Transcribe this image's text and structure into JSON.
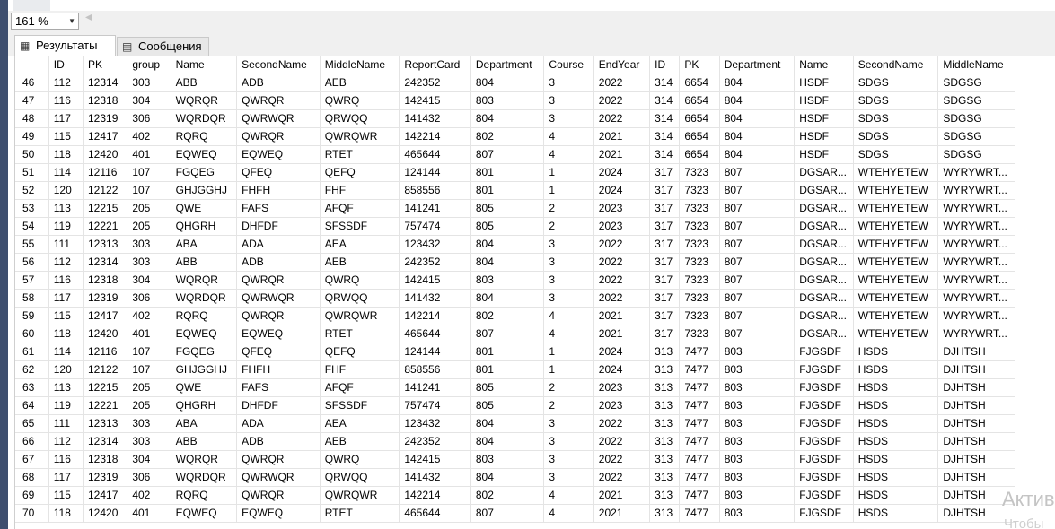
{
  "zoom": {
    "value": "161 %"
  },
  "tabs": [
    {
      "label": "Результаты",
      "icon": "grid-icon"
    },
    {
      "label": "Сообщения",
      "icon": "messages-icon"
    }
  ],
  "grid": {
    "columns": [
      "",
      "ID",
      "PK",
      "group",
      "Name",
      "SecondName",
      "MiddleName",
      "ReportCard",
      "Department",
      "Course",
      "EndYear",
      "ID",
      "PK",
      "Department",
      "Name",
      "SecondName",
      "MiddleName"
    ],
    "rows": [
      [
        "46",
        "112",
        "12314",
        "303",
        "ABB",
        "ADB",
        "AEB",
        "242352",
        "804",
        "3",
        "2022",
        "314",
        "6654",
        "804",
        "HSDF",
        "SDGS",
        "SDGSG"
      ],
      [
        "47",
        "116",
        "12318",
        "304",
        "WQRQR",
        "QWRQR",
        "QWRQ",
        "142415",
        "803",
        "3",
        "2022",
        "314",
        "6654",
        "804",
        "HSDF",
        "SDGS",
        "SDGSG"
      ],
      [
        "48",
        "117",
        "12319",
        "306",
        "WQRDQR",
        "QWRWQR",
        "QRWQQ",
        "141432",
        "804",
        "3",
        "2022",
        "314",
        "6654",
        "804",
        "HSDF",
        "SDGS",
        "SDGSG"
      ],
      [
        "49",
        "115",
        "12417",
        "402",
        "RQRQ",
        "QWRQR",
        "QWRQWR",
        "142214",
        "802",
        "4",
        "2021",
        "314",
        "6654",
        "804",
        "HSDF",
        "SDGS",
        "SDGSG"
      ],
      [
        "50",
        "118",
        "12420",
        "401",
        "EQWEQ",
        "EQWEQ",
        "RTET",
        "465644",
        "807",
        "4",
        "2021",
        "314",
        "6654",
        "804",
        "HSDF",
        "SDGS",
        "SDGSG"
      ],
      [
        "51",
        "114",
        "12116",
        "107",
        "FGQEG",
        "QFEQ",
        "QEFQ",
        "124144",
        "801",
        "1",
        "2024",
        "317",
        "7323",
        "807",
        "DGSAR...",
        "WTEHYETEW",
        "WYRYWRT..."
      ],
      [
        "52",
        "120",
        "12122",
        "107",
        "GHJGGHJ",
        "FHFH",
        "FHF",
        "858556",
        "801",
        "1",
        "2024",
        "317",
        "7323",
        "807",
        "DGSAR...",
        "WTEHYETEW",
        "WYRYWRT..."
      ],
      [
        "53",
        "113",
        "12215",
        "205",
        "QWE",
        "FAFS",
        "AFQF",
        "141241",
        "805",
        "2",
        "2023",
        "317",
        "7323",
        "807",
        "DGSAR...",
        "WTEHYETEW",
        "WYRYWRT..."
      ],
      [
        "54",
        "119",
        "12221",
        "205",
        "QHGRH",
        "DHFDF",
        "SFSSDF",
        "757474",
        "805",
        "2",
        "2023",
        "317",
        "7323",
        "807",
        "DGSAR...",
        "WTEHYETEW",
        "WYRYWRT..."
      ],
      [
        "55",
        "111",
        "12313",
        "303",
        "ABA",
        "ADA",
        "AEA",
        "123432",
        "804",
        "3",
        "2022",
        "317",
        "7323",
        "807",
        "DGSAR...",
        "WTEHYETEW",
        "WYRYWRT..."
      ],
      [
        "56",
        "112",
        "12314",
        "303",
        "ABB",
        "ADB",
        "AEB",
        "242352",
        "804",
        "3",
        "2022",
        "317",
        "7323",
        "807",
        "DGSAR...",
        "WTEHYETEW",
        "WYRYWRT..."
      ],
      [
        "57",
        "116",
        "12318",
        "304",
        "WQRQR",
        "QWRQR",
        "QWRQ",
        "142415",
        "803",
        "3",
        "2022",
        "317",
        "7323",
        "807",
        "DGSAR...",
        "WTEHYETEW",
        "WYRYWRT..."
      ],
      [
        "58",
        "117",
        "12319",
        "306",
        "WQRDQR",
        "QWRWQR",
        "QRWQQ",
        "141432",
        "804",
        "3",
        "2022",
        "317",
        "7323",
        "807",
        "DGSAR...",
        "WTEHYETEW",
        "WYRYWRT..."
      ],
      [
        "59",
        "115",
        "12417",
        "402",
        "RQRQ",
        "QWRQR",
        "QWRQWR",
        "142214",
        "802",
        "4",
        "2021",
        "317",
        "7323",
        "807",
        "DGSAR...",
        "WTEHYETEW",
        "WYRYWRT..."
      ],
      [
        "60",
        "118",
        "12420",
        "401",
        "EQWEQ",
        "EQWEQ",
        "RTET",
        "465644",
        "807",
        "4",
        "2021",
        "317",
        "7323",
        "807",
        "DGSAR...",
        "WTEHYETEW",
        "WYRYWRT..."
      ],
      [
        "61",
        "114",
        "12116",
        "107",
        "FGQEG",
        "QFEQ",
        "QEFQ",
        "124144",
        "801",
        "1",
        "2024",
        "313",
        "7477",
        "803",
        "FJGSDF",
        "HSDS",
        "DJHTSH"
      ],
      [
        "62",
        "120",
        "12122",
        "107",
        "GHJGGHJ",
        "FHFH",
        "FHF",
        "858556",
        "801",
        "1",
        "2024",
        "313",
        "7477",
        "803",
        "FJGSDF",
        "HSDS",
        "DJHTSH"
      ],
      [
        "63",
        "113",
        "12215",
        "205",
        "QWE",
        "FAFS",
        "AFQF",
        "141241",
        "805",
        "2",
        "2023",
        "313",
        "7477",
        "803",
        "FJGSDF",
        "HSDS",
        "DJHTSH"
      ],
      [
        "64",
        "119",
        "12221",
        "205",
        "QHGRH",
        "DHFDF",
        "SFSSDF",
        "757474",
        "805",
        "2",
        "2023",
        "313",
        "7477",
        "803",
        "FJGSDF",
        "HSDS",
        "DJHTSH"
      ],
      [
        "65",
        "111",
        "12313",
        "303",
        "ABA",
        "ADA",
        "AEA",
        "123432",
        "804",
        "3",
        "2022",
        "313",
        "7477",
        "803",
        "FJGSDF",
        "HSDS",
        "DJHTSH"
      ],
      [
        "66",
        "112",
        "12314",
        "303",
        "ABB",
        "ADB",
        "AEB",
        "242352",
        "804",
        "3",
        "2022",
        "313",
        "7477",
        "803",
        "FJGSDF",
        "HSDS",
        "DJHTSH"
      ],
      [
        "67",
        "116",
        "12318",
        "304",
        "WQRQR",
        "QWRQR",
        "QWRQ",
        "142415",
        "803",
        "3",
        "2022",
        "313",
        "7477",
        "803",
        "FJGSDF",
        "HSDS",
        "DJHTSH"
      ],
      [
        "68",
        "117",
        "12319",
        "306",
        "WQRDQR",
        "QWRWQR",
        "QRWQQ",
        "141432",
        "804",
        "3",
        "2022",
        "313",
        "7477",
        "803",
        "FJGSDF",
        "HSDS",
        "DJHTSH"
      ],
      [
        "69",
        "115",
        "12417",
        "402",
        "RQRQ",
        "QWRQR",
        "QWRQWR",
        "142214",
        "802",
        "4",
        "2021",
        "313",
        "7477",
        "803",
        "FJGSDF",
        "HSDS",
        "DJHTSH"
      ],
      [
        "70",
        "118",
        "12420",
        "401",
        "EQWEQ",
        "EQWEQ",
        "RTET",
        "465644",
        "807",
        "4",
        "2021",
        "313",
        "7477",
        "803",
        "FJGSDF",
        "HSDS",
        "DJHTSH"
      ]
    ]
  },
  "watermark": {
    "line1": "Актив",
    "line2": "Чтобы"
  }
}
